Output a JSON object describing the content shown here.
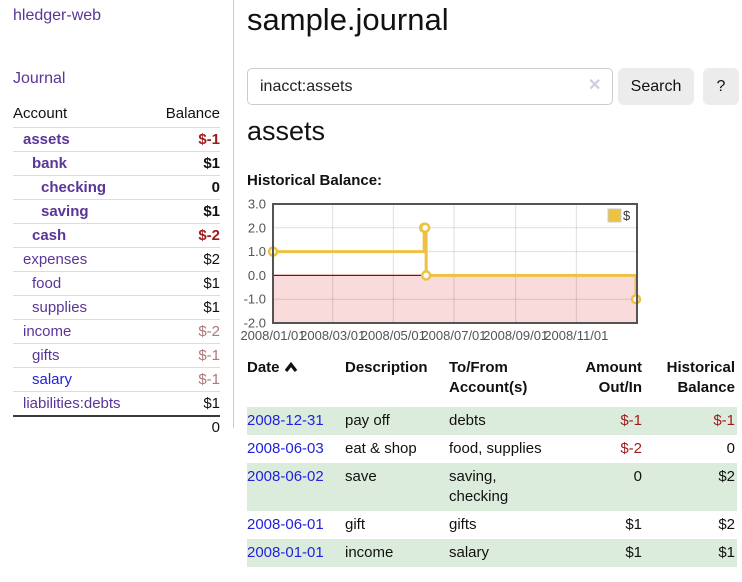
{
  "sidebar": {
    "brand": "hledger-web",
    "journal_link": "Journal",
    "accounts_table": {
      "headers": {
        "account": "Account",
        "balance": "Balance"
      },
      "rows": [
        {
          "name": "assets",
          "balance": "$-1",
          "indent": 1,
          "bold": true,
          "balance_style": "strong-neg"
        },
        {
          "name": "bank",
          "balance": "$1",
          "indent": 2,
          "bold": true
        },
        {
          "name": "checking",
          "balance": "0",
          "indent": 3,
          "bold": true
        },
        {
          "name": "saving",
          "balance": "$1",
          "indent": 3,
          "bold": true
        },
        {
          "name": "cash",
          "balance": "$-2",
          "indent": 2,
          "bold": true,
          "balance_style": "strong-neg"
        },
        {
          "name": "expenses",
          "balance": "$2",
          "indent": 1
        },
        {
          "name": "food",
          "balance": "$1",
          "indent": 2
        },
        {
          "name": "supplies",
          "balance": "$1",
          "indent": 2
        },
        {
          "name": "income",
          "balance": "$-2",
          "indent": 1,
          "balance_style": "muted-neg"
        },
        {
          "name": "gifts",
          "balance": "$-1",
          "indent": 2,
          "balance_style": "muted-neg"
        },
        {
          "name": "salary",
          "balance": "$-1",
          "indent": 2,
          "balance_style": "muted-neg",
          "link_color": "blue"
        },
        {
          "name": "liabilities:debts",
          "balance": "$1",
          "indent": 1
        }
      ],
      "total": "0"
    }
  },
  "main": {
    "title": "sample.journal",
    "search": {
      "value": "inacct:assets",
      "clear_icon": "✕",
      "button_label": "Search",
      "help_label": "?"
    },
    "account_heading": "assets",
    "chart_heading": "Historical Balance:",
    "register_table": {
      "headers": {
        "date": "Date",
        "description": "Description",
        "tofrom_line1": "To/From",
        "tofrom_line2": "Account(s)",
        "amount_line1": "Amount",
        "amount_line2": "Out/In",
        "balance_line1": "Historical",
        "balance_line2": "Balance"
      },
      "sort": {
        "column": "date",
        "direction": "ascending"
      },
      "rows": [
        {
          "date": "2008-12-31",
          "description": "pay off",
          "accounts": "debts",
          "amount": "$-1",
          "balance": "$-1",
          "amount_negative": true,
          "balance_negative": true,
          "shaded": true
        },
        {
          "date": "2008-06-03",
          "description": "eat & shop",
          "accounts": "food, supplies",
          "amount": "$-2",
          "balance": "0",
          "amount_negative": true,
          "balance_negative": false,
          "shaded": false
        },
        {
          "date": "2008-06-02",
          "description": "save",
          "accounts": "saving, checking",
          "amount": "0",
          "balance": "$2",
          "amount_negative": false,
          "balance_negative": false,
          "shaded": true
        },
        {
          "date": "2008-06-01",
          "description": "gift",
          "accounts": "gifts",
          "amount": "$1",
          "balance": "$2",
          "amount_negative": false,
          "balance_negative": false,
          "shaded": false
        },
        {
          "date": "2008-01-01",
          "description": "income",
          "accounts": "salary",
          "amount": "$1",
          "balance": "$1",
          "amount_negative": false,
          "balance_negative": false,
          "shaded": true
        }
      ]
    }
  },
  "chart_data": {
    "type": "line",
    "step": true,
    "title": "Historical Balance:",
    "series": [
      {
        "name": "$",
        "color": "#edc240",
        "points": [
          [
            "2008-01-01",
            1
          ],
          [
            "2008-06-01",
            2
          ],
          [
            "2008-06-02",
            2
          ],
          [
            "2008-06-03",
            0
          ],
          [
            "2008-12-31",
            -1
          ]
        ]
      }
    ],
    "xlim": [
      "2008-01-01",
      "2009-01-01"
    ],
    "ylim": [
      -2,
      3
    ],
    "x_ticks": [
      {
        "date": "2008-01-01",
        "label": "2008/01/01"
      },
      {
        "date": "2008-03-01",
        "label": "2008/03/01"
      },
      {
        "date": "2008-05-01",
        "label": "2008/05/01"
      },
      {
        "date": "2008-07-01",
        "label": "2008/07/01"
      },
      {
        "date": "2008-09-01",
        "label": "2008/09/01"
      },
      {
        "date": "2008-11-01",
        "label": "2008/11/01"
      }
    ],
    "y_ticks": [
      {
        "value": 3,
        "label": "3.0"
      },
      {
        "value": 2,
        "label": "2.0"
      },
      {
        "value": 1,
        "label": "1.0"
      },
      {
        "value": 0,
        "label": "0.0"
      },
      {
        "value": -1,
        "label": "-1.0"
      },
      {
        "value": -2,
        "label": "-2.0"
      }
    ],
    "grid": true,
    "legend_position": "top-right",
    "grid_color": "rgba(0,0,0,0.13)",
    "border_color": "#545454",
    "zero_line_color": "#a40000",
    "negative_region_color": "#fadbdc"
  }
}
